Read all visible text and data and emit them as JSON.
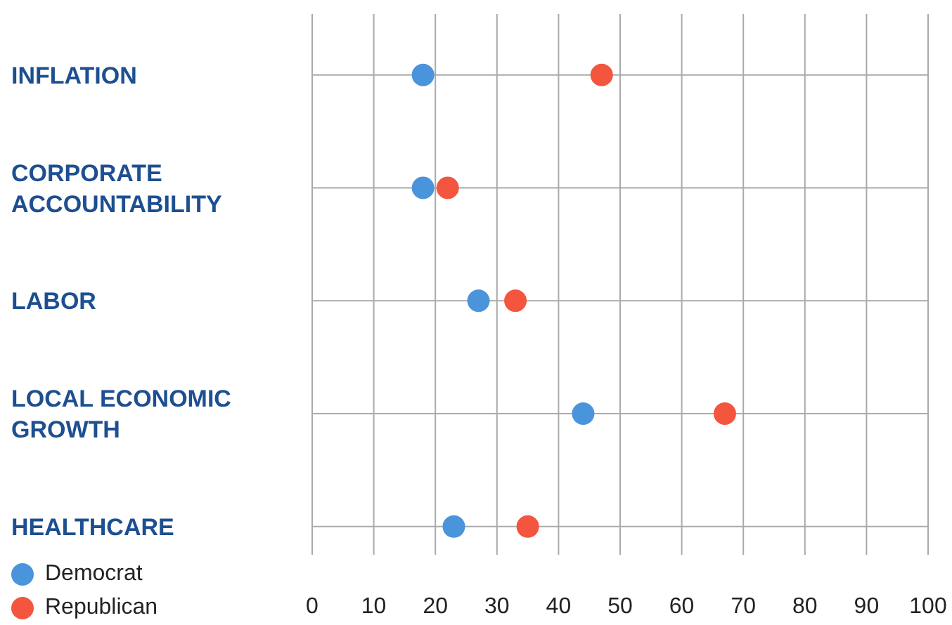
{
  "chart_data": {
    "type": "scatter",
    "orientation": "horizontal",
    "categories": [
      "INFLATION",
      "CORPORATE ACCOUNTABILITY",
      "LABOR",
      "LOCAL ECONOMIC GROWTH",
      "HEALTHCARE"
    ],
    "series": [
      {
        "name": "Democrat",
        "color": "#4a94dc",
        "values": [
          18,
          18,
          27,
          44,
          23
        ]
      },
      {
        "name": "Republican",
        "color": "#f4553f",
        "values": [
          47,
          22,
          33,
          67,
          35
        ]
      }
    ],
    "xlim": [
      0,
      100
    ],
    "xticks": [
      0,
      10,
      20,
      30,
      40,
      50,
      60,
      70,
      80,
      90,
      100
    ],
    "grid": true,
    "legend": "bottom left",
    "marker": "circle"
  }
}
